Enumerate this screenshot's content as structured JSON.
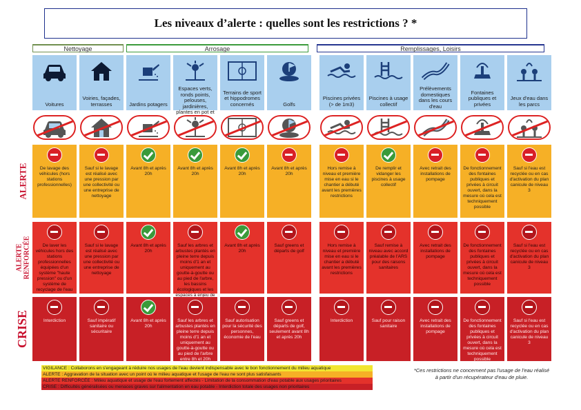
{
  "title": "Les niveaux d’alerte : quelles sont les restrictions ? *",
  "categories": {
    "nettoyage": "Nettoyage",
    "arrosage": "Arrosage",
    "emplois": "Remplissages, Loisirs"
  },
  "row_labels": {
    "alerte": "ALERTE",
    "renforcee": "ALERTE RENFORCÉE",
    "crise": "CRISE"
  },
  "columns": [
    {
      "label": "Voitures",
      "icon": "car-icon",
      "alerte": {
        "status": "forbidden",
        "text": "De lavage des véhicules (hors stations professionnelles)"
      },
      "renforcee": {
        "status": "forbidden",
        "text": "De laver les véhicules hors des stations professionnelles équipées d'un système \"haute pression\" ou d'un système de recyclage de l'eau"
      },
      "crise": {
        "status": "forbidden",
        "text": "Interdiction"
      }
    },
    {
      "label": "Voiries, façades, terrasses",
      "icon": "house-icon",
      "alerte": {
        "status": "forbidden",
        "text": "Sauf si le lavage est réalisé avec une pression par une collectivité ou une entreprise de nettoyage"
      },
      "renforcee": {
        "status": "forbidden",
        "text": "Sauf si le lavage est réalisé avec une pression par une collectivité ou une entreprise de nettoyage"
      },
      "crise": {
        "status": "forbidden",
        "text": "Sauf impératif sanitaire ou sécuritaire"
      }
    },
    {
      "label": "Jardins potagers",
      "icon": "watering-can-icon",
      "alerte": {
        "status": "allowed",
        "text": "Avant 8h et après 20h"
      },
      "renforcee": {
        "status": "allowed",
        "text": "Avant 8h et après 20h"
      },
      "crise": {
        "status": "allowed",
        "text": "Avant 8h et après 20h"
      }
    },
    {
      "label": "Espaces verts, ronds points, pelouses, jardinières, plantes en pot et massifs fleuris, arbres et arbustes",
      "icon": "sprinkler-icon",
      "alerte": {
        "status": "allowed",
        "text": "Avant 8h et après 20h"
      },
      "renforcee": {
        "status": "forbidden",
        "text": "Sauf les arbres et arbustes plantés en pleine terre depuis moins d'1 an et uniquement au goutte-à-goutte ou au pied de l'arbre, les bassins écologiques et les espaces à enjeu de biodiversité"
      },
      "crise": {
        "status": "forbidden",
        "text": "Sauf les arbres et arbustes plantés en pleine terre depuis moins d'1 an et uniquement au goutte-à-goutte ou au pied de l'arbre entre 8h et 20h"
      }
    },
    {
      "label": "Terrains de sport et hippodromes concernés",
      "icon": "sports-field-icon",
      "alerte": {
        "status": "allowed",
        "text": "Avant 8h et après 20h"
      },
      "renforcee": {
        "status": "allowed",
        "text": "Avant 8h et après 20h"
      },
      "crise": {
        "status": "forbidden",
        "text": "Sauf autorisation pour la sécurité des personnes, économie de l'eau"
      }
    },
    {
      "label": "Golfs",
      "icon": "golf-flag-icon",
      "alerte": {
        "status": "forbidden",
        "text": "Avant 8h et après 20h"
      },
      "renforcee": {
        "status": "forbidden",
        "text": "Sauf greens et départs de golf"
      },
      "crise": {
        "status": "forbidden",
        "text": "Sauf greens et départs de golf, seulement avant 8h et après 20h"
      }
    },
    {
      "label": "Piscines privées (> de 1m3)",
      "icon": "swimmer-icon",
      "alerte": {
        "status": "forbidden",
        "text": "Hors remise à niveau et première mise en eau si le chantier a débuté avant les premières restrictions"
      },
      "renforcee": {
        "status": "forbidden",
        "text": "Hors remise à niveau et première mise en eau si le chantier a débuté avant les premières restrictions"
      },
      "crise": {
        "status": "forbidden",
        "text": "Interdiction"
      }
    },
    {
      "label": "Piscines à usage collectif",
      "icon": "pool-icon",
      "alerte": {
        "status": "allowed",
        "text": "De remplir et vidanger les piscines à usage collectif"
      },
      "renforcee": {
        "status": "forbidden",
        "text": "Sauf remise à niveau avec accord préalable de l'ARS pour des raisons sanitaires"
      },
      "crise": {
        "status": "forbidden",
        "text": "Sauf pour raison sanitaire"
      }
    },
    {
      "label": "Prélèvements domestiques dans les cours d'eau",
      "icon": "river-icon",
      "alerte": {
        "status": "forbidden",
        "text": "Avec retrait des installations de pompage"
      },
      "renforcee": {
        "status": "forbidden",
        "text": "Avec retrait des installations de pompage"
      },
      "crise": {
        "status": "forbidden",
        "text": "Avec retrait des installations de pompage"
      }
    },
    {
      "label": "Fontaines publiques et privées",
      "icon": "fountain-icon",
      "alerte": {
        "status": "forbidden",
        "text": "De fonctionnement des fontaines publiques et privées à circuit ouvert, dans la mesure où cela est techniquement possible"
      },
      "renforcee": {
        "status": "forbidden",
        "text": "De fonctionnement des fontaines publiques et privées à circuit ouvert, dans la mesure où cela est techniquement possible"
      },
      "crise": {
        "status": "forbidden",
        "text": "De fonctionnement des fontaines publiques et privées à circuit ouvert, dans la mesure où cela est techniquement possible"
      }
    },
    {
      "label": "Jeux d'eau dans les parcs",
      "icon": "water-play-icon",
      "alerte": {
        "status": "forbidden",
        "text": "Sauf si l'eau est recyclée ou en cas d'activation du plan canicule de niveau 3"
      },
      "renforcee": {
        "status": "forbidden",
        "text": "Sauf si l'eau est recyclée ou en cas d'activation du plan canicule de niveau 3"
      },
      "crise": {
        "status": "forbidden",
        "text": "Sauf si l'eau est recyclée ou en cas d'activation du plan canicule de niveau 3"
      }
    }
  ],
  "legend": {
    "vigilance": "VIGILANCE : Collaborons en s'engageant à réduire nos usages de l'eau devient indispensable avec le bon fonctionnement du milieu aquatique",
    "alerte": "ALERTE : Aggravation de la situation avec un point où le milieu aquatique et l'usage de l'eau ne sont plus satisfaisants",
    "renforcee": "ALERTE RENFORCÉE : Milieu aquatique et usage de l'eau fortement affectés - Limitation de la consommation d'eau potable aux usages prioritaires",
    "crise": "CRISE : Difficultés généralisées ou menaces graves sur l'alimentation en eau potable - Interdiction totale des usages non prioritaires"
  },
  "note": "*Ces restrictions ne concernent pas l'usage de l'eau réalisé à partir d'un récupérateur d'eau de pluie.",
  "colors": {
    "header_blue": "#a9cfee",
    "alerte": "#f6b026",
    "renforcee": "#e4322b",
    "crise": "#c82026",
    "vigilance": "#f1e630",
    "allowed_green": "#3a9a3a"
  }
}
